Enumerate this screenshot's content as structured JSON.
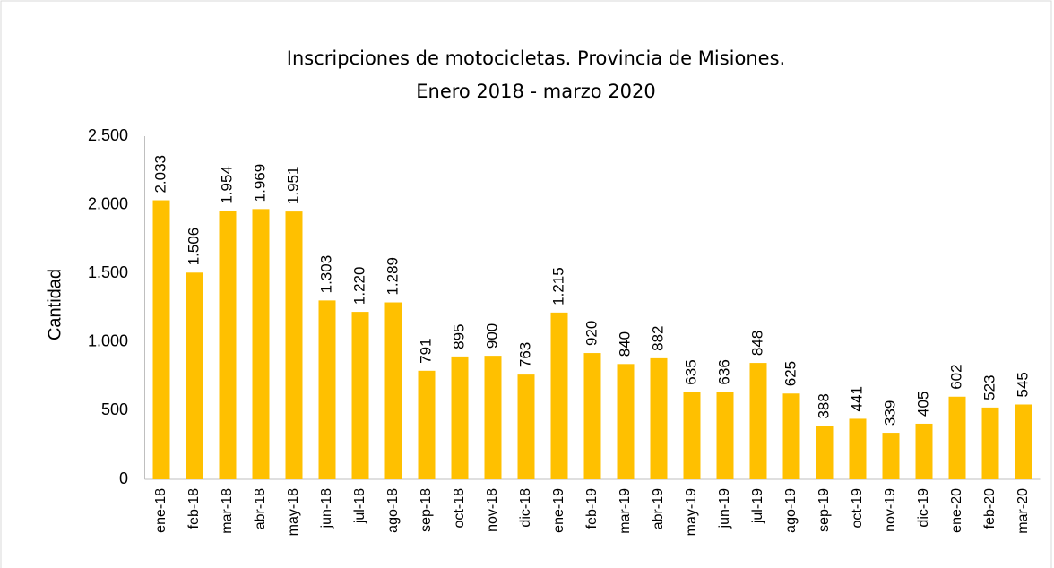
{
  "chart_data": {
    "type": "bar",
    "title": "Inscripciones de motocicletas. Provincia de Misiones.",
    "subtitle": "Enero  2018 - marzo 2020",
    "y_label": "Cantidad",
    "categories": [
      "ene-18",
      "feb-18",
      "mar-18",
      "abr-18",
      "may-18",
      "jun-18",
      "jul-18",
      "ago-18",
      "sep-18",
      "oct-18",
      "nov-18",
      "dic-18",
      "ene-19",
      "feb-19",
      "mar-19",
      "abr-19",
      "may-19",
      "jun-19",
      "jul-19",
      "ago-19",
      "sep-19",
      "oct-19",
      "nov-19",
      "dic-19",
      "ene-20",
      "feb-20",
      "mar-20"
    ],
    "values": [
      2033,
      1506,
      1954,
      1969,
      1951,
      1303,
      1220,
      1289,
      791,
      895,
      900,
      763,
      1215,
      920,
      840,
      882,
      635,
      636,
      848,
      625,
      388,
      441,
      339,
      405,
      602,
      523,
      545
    ],
    "value_labels": [
      "2.033",
      "1.506",
      "1.954",
      "1.969",
      "1.951",
      "1.303",
      "1.220",
      "1.289",
      "791",
      "895",
      "900",
      "763",
      "1.215",
      "920",
      "840",
      "882",
      "635",
      "636",
      "848",
      "625",
      "388",
      "441",
      "339",
      "405",
      "602",
      "523",
      "545"
    ],
    "color": "#ffc000",
    "ylim": [
      0,
      2500
    ],
    "yticks": [
      0,
      500,
      {
        "value": 1000,
        "label": "1.000"
      },
      {
        "value": 1500,
        "label": "1.500"
      },
      {
        "value": 2000,
        "label": "2.000"
      },
      {
        "value": 2500,
        "label": "2.500"
      }
    ],
    "grid": false
  }
}
